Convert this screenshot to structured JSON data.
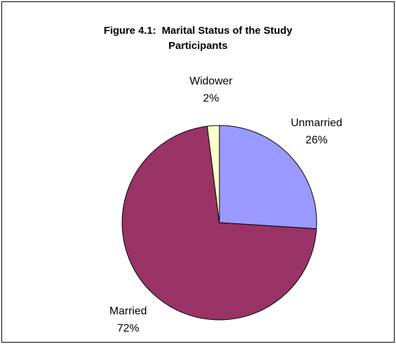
{
  "chart_data": {
    "type": "pie",
    "title": "Figure 4.1:  Marital Status of the Study Participants",
    "categories": [
      "Unmarried",
      "Married",
      "Widower"
    ],
    "values": [
      26,
      72,
      2
    ],
    "value_labels": [
      "26%",
      "72%",
      "2%"
    ],
    "colors": [
      "#9999ff",
      "#993366",
      "#ffffcc"
    ]
  }
}
